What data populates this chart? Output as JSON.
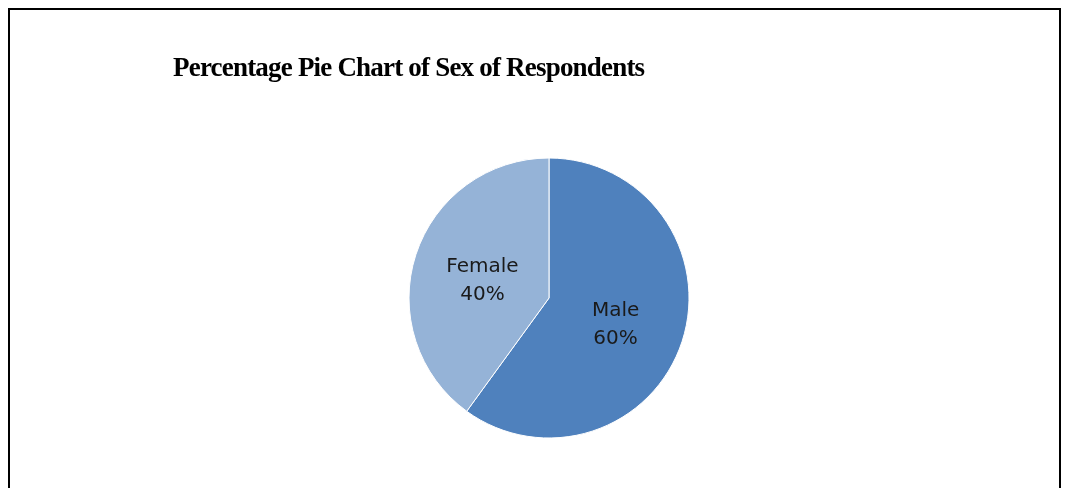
{
  "chart_data": {
    "type": "pie",
    "title": "Percentage Pie Chart of Sex of Respondents",
    "categories": [
      "Male",
      "Female"
    ],
    "values": [
      60,
      40
    ],
    "colors": [
      "#4f81bd",
      "#95b3d7"
    ],
    "value_labels": [
      "60%",
      "40%"
    ]
  }
}
